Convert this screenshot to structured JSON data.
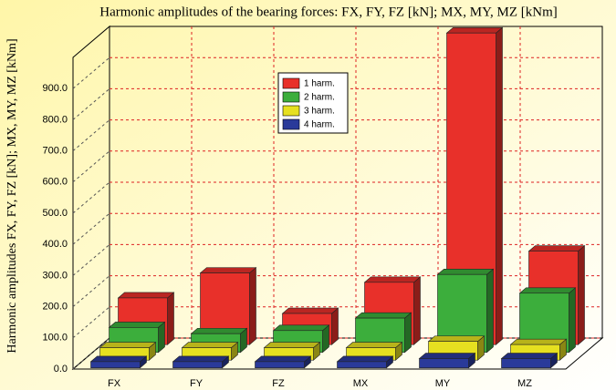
{
  "chart_data": {
    "type": "bar3d",
    "title": "Harmonic amplitudes of the bearing forces: FX, FY, FZ [kN]; MX, MY, MZ [kNm]",
    "ylabel": "Harmonic amplitudes FX, FY, FZ [kN]; MX, MY, MZ [kNm]",
    "categories": [
      "FX",
      "FY",
      "FZ",
      "MX",
      "MY",
      "MZ"
    ],
    "series": [
      {
        "name": "1 harm.",
        "color": "#e8302a",
        "values": [
          150,
          230,
          100,
          200,
          1000,
          300
        ]
      },
      {
        "name": "2 harm.",
        "color": "#3cae3c",
        "values": [
          80,
          60,
          70,
          110,
          250,
          190
        ]
      },
      {
        "name": "3 harm.",
        "color": "#e6e020",
        "values": [
          40,
          40,
          40,
          40,
          60,
          50
        ]
      },
      {
        "name": "4 harm.",
        "color": "#2a3a9a",
        "values": [
          20,
          20,
          20,
          20,
          30,
          30
        ]
      }
    ],
    "ylim": [
      0,
      1000
    ],
    "yticks": [
      {
        "value": 0,
        "label": "0.0"
      },
      {
        "value": 100,
        "label": "100.0"
      },
      {
        "value": 200,
        "label": "200.0"
      },
      {
        "value": 300,
        "label": "300.0"
      },
      {
        "value": 400,
        "label": "400.0"
      },
      {
        "value": 500,
        "label": "500.0"
      },
      {
        "value": 600,
        "label": "600.0"
      },
      {
        "value": 700,
        "label": "700.0"
      },
      {
        "value": 800,
        "label": "800.0"
      },
      {
        "value": 900,
        "label": "900.0"
      }
    ],
    "grid": true
  }
}
